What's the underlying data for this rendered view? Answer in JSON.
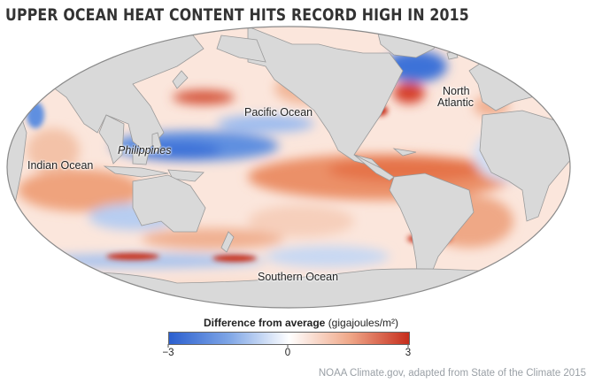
{
  "title": "UPPER OCEAN HEAT CONTENT HITS RECORD HIGH IN 2015",
  "map": {
    "projection": "Mollweide",
    "land_color": "#d9d9d9",
    "border_color": "#9a9a9a",
    "labels": {
      "pacific": "Pacific Ocean",
      "philippines": "Philippines",
      "indian": "Indian Ocean",
      "north_atlantic_1": "North",
      "north_atlantic_2": "Atlantic",
      "southern": "Southern Ocean"
    }
  },
  "legend": {
    "title": "Difference from average",
    "units": "(gigajoules/m²)",
    "min_label": "−3",
    "mid_label": "0",
    "max_label": "3",
    "colors": [
      "#2b5fcf",
      "#7fa6e6",
      "#ffffff",
      "#f0a98a",
      "#c62d1c"
    ]
  },
  "credit": "NOAA Climate.gov, adapted from State of the Climate 2015"
}
